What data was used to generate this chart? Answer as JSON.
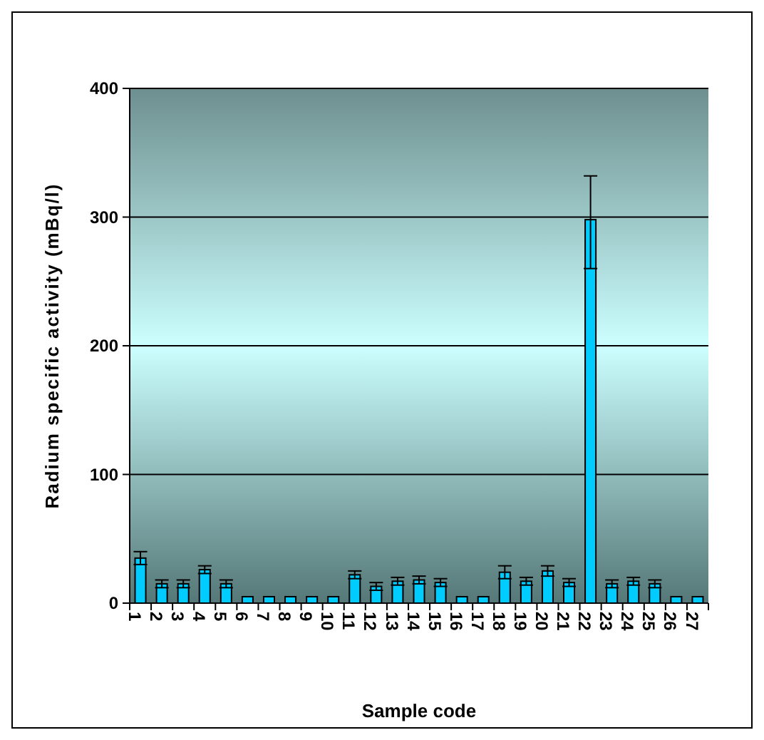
{
  "chart_data": {
    "type": "bar",
    "xlabel": "Sample code",
    "ylabel": "Radium specific activity (mBq/l)",
    "categories": [
      "1",
      "2",
      "3",
      "4",
      "5",
      "6",
      "7",
      "8",
      "9",
      "10",
      "11",
      "12",
      "13",
      "14",
      "15",
      "16",
      "17",
      "18",
      "19",
      "20",
      "21",
      "22",
      "23",
      "24",
      "25",
      "26",
      "27"
    ],
    "values": [
      35,
      15,
      15,
      26,
      15,
      5,
      5,
      5,
      5,
      5,
      22,
      13,
      17,
      18,
      16,
      5,
      5,
      24,
      17,
      25,
      16,
      298,
      15,
      17,
      15,
      5,
      5
    ],
    "errors": [
      5,
      3,
      3,
      3,
      3,
      null,
      null,
      null,
      null,
      null,
      3,
      3,
      3,
      3,
      3,
      null,
      null,
      5,
      3,
      4,
      3,
      [
        260,
        332
      ],
      3,
      3,
      3,
      null,
      null
    ],
    "color": "#00ccff",
    "ylim": [
      0,
      400
    ],
    "yticks": [
      0,
      100,
      200,
      300,
      400
    ],
    "grid": "y"
  }
}
